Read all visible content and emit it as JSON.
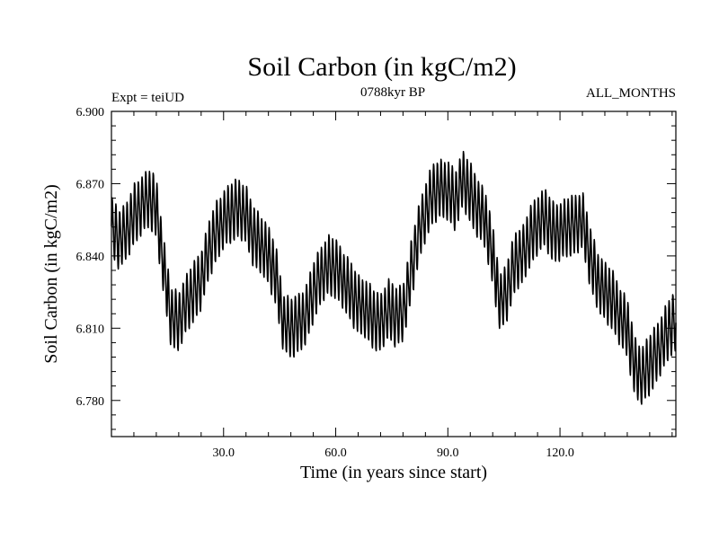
{
  "chart_data": {
    "type": "line",
    "title": "Soil Carbon (in kgC/m2)",
    "subtitle": "0788kyr BP",
    "left_label": "Expt = teiUD",
    "right_label": "ALL_MONTHS",
    "xlabel": "Time (in years since start)",
    "ylabel": "Soil Carbon (in kgC/m2)",
    "xlim": [
      0,
      151
    ],
    "ylim": [
      6.765,
      6.9
    ],
    "x_ticks": [
      30,
      60,
      90,
      120
    ],
    "x_tick_labels": [
      "30.0",
      "60.0",
      "90.0",
      "120.0"
    ],
    "y_ticks": [
      6.78,
      6.81,
      6.84,
      6.87,
      6.9
    ],
    "y_tick_labels": [
      "6.780",
      "6.810",
      "6.840",
      "6.870",
      "6.900"
    ],
    "grid": false,
    "series": [
      {
        "name": "Soil Carbon",
        "seasonal_amplitude": 0.011,
        "annual_mean_x": [
          0,
          2,
          4,
          6,
          8,
          10,
          12,
          14,
          16,
          18,
          20,
          22,
          24,
          26,
          28,
          30,
          32,
          34,
          36,
          38,
          40,
          42,
          44,
          46,
          48,
          50,
          52,
          54,
          56,
          58,
          60,
          62,
          64,
          66,
          68,
          70,
          72,
          74,
          76,
          78,
          80,
          82,
          84,
          86,
          88,
          90,
          92,
          94,
          96,
          98,
          100,
          102,
          104,
          106,
          108,
          110,
          112,
          114,
          116,
          118,
          120,
          122,
          124,
          126,
          128,
          130,
          132,
          134,
          136,
          138,
          140,
          142,
          144,
          146,
          148,
          150
        ],
        "annual_mean_y": [
          6.852,
          6.847,
          6.85,
          6.857,
          6.861,
          6.864,
          6.86,
          6.835,
          6.814,
          6.813,
          6.82,
          6.825,
          6.83,
          6.842,
          6.85,
          6.855,
          6.858,
          6.86,
          6.857,
          6.848,
          6.845,
          6.84,
          6.832,
          6.812,
          6.81,
          6.812,
          6.815,
          6.825,
          6.832,
          6.836,
          6.835,
          6.83,
          6.825,
          6.82,
          6.818,
          6.814,
          6.812,
          6.818,
          6.815,
          6.816,
          6.832,
          6.848,
          6.858,
          6.866,
          6.868,
          6.867,
          6.863,
          6.872,
          6.866,
          6.86,
          6.855,
          6.84,
          6.82,
          6.826,
          6.838,
          6.84,
          6.848,
          6.853,
          6.856,
          6.85,
          6.85,
          6.852,
          6.853,
          6.855,
          6.84,
          6.83,
          6.825,
          6.822,
          6.815,
          6.81,
          6.794,
          6.79,
          6.795,
          6.8,
          6.806,
          6.812
        ]
      }
    ]
  }
}
